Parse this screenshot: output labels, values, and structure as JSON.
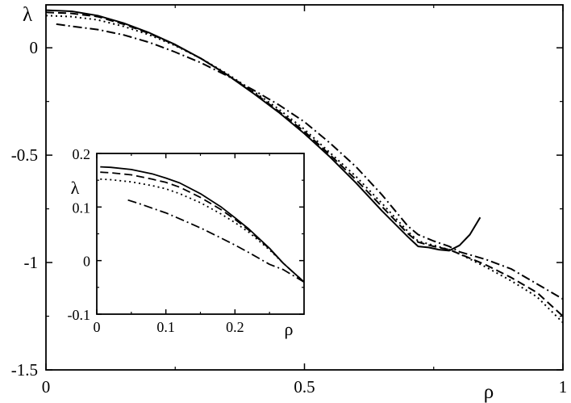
{
  "chart_data": [
    {
      "type": "line",
      "title": "",
      "xlabel": "ρ",
      "ylabel": "λ",
      "xlim": [
        0,
        1
      ],
      "ylim": [
        -1.5,
        0.2
      ],
      "xticks": [
        0,
        0.5,
        1
      ],
      "xtick_labels": [
        "0",
        "0.5",
        "1"
      ],
      "yticks": [
        0,
        -0.5,
        -1,
        -1.5
      ],
      "ytick_labels": [
        "0",
        "-0.5",
        "-1",
        "-1.5"
      ],
      "grid": false,
      "legend": "none",
      "series": [
        {
          "style": "solid",
          "x": [
            0,
            0.05,
            0.1,
            0.15,
            0.2,
            0.25,
            0.3,
            0.35,
            0.4,
            0.45,
            0.5,
            0.55,
            0.6,
            0.65,
            0.7,
            0.72,
            0.74,
            0.76,
            0.78,
            0.8,
            0.82,
            0.84
          ],
          "y": [
            0.175,
            0.17,
            0.15,
            0.115,
            0.07,
            0.015,
            -0.05,
            -0.125,
            -0.21,
            -0.3,
            -0.4,
            -0.51,
            -0.63,
            -0.76,
            -0.88,
            -0.925,
            -0.93,
            -0.94,
            -0.945,
            -0.92,
            -0.87,
            -0.79
          ]
        },
        {
          "style": "dashed",
          "x": [
            0,
            0.05,
            0.1,
            0.15,
            0.2,
            0.25,
            0.3,
            0.35,
            0.4,
            0.45,
            0.5,
            0.55,
            0.6,
            0.65,
            0.7,
            0.72,
            0.75,
            0.78,
            0.8,
            0.85,
            0.9,
            0.95,
            1
          ],
          "y": [
            0.165,
            0.16,
            0.145,
            0.11,
            0.067,
            0.013,
            -0.05,
            -0.125,
            -0.205,
            -0.295,
            -0.39,
            -0.5,
            -0.615,
            -0.74,
            -0.865,
            -0.905,
            -0.925,
            -0.94,
            -0.96,
            -1.01,
            -1.07,
            -1.14,
            -1.25
          ]
        },
        {
          "style": "dotted",
          "x": [
            0,
            0.05,
            0.1,
            0.15,
            0.2,
            0.25,
            0.3,
            0.35,
            0.4,
            0.45,
            0.5,
            0.55,
            0.6,
            0.65,
            0.7,
            0.72,
            0.75,
            0.78,
            0.8,
            0.85,
            0.9,
            0.95,
            1
          ],
          "y": [
            0.15,
            0.145,
            0.13,
            0.1,
            0.06,
            0.01,
            -0.05,
            -0.12,
            -0.2,
            -0.285,
            -0.38,
            -0.49,
            -0.6,
            -0.725,
            -0.855,
            -0.9,
            -0.92,
            -0.94,
            -0.96,
            -1.02,
            -1.085,
            -1.16,
            -1.28
          ]
        },
        {
          "style": "dash-dot",
          "x": [
            0.02,
            0.05,
            0.1,
            0.15,
            0.2,
            0.25,
            0.3,
            0.35,
            0.4,
            0.45,
            0.5,
            0.55,
            0.6,
            0.65,
            0.7,
            0.72,
            0.75,
            0.78,
            0.8,
            0.85,
            0.9,
            0.95,
            1
          ],
          "y": [
            0.11,
            0.1,
            0.085,
            0.06,
            0.025,
            -0.02,
            -0.07,
            -0.13,
            -0.195,
            -0.265,
            -0.345,
            -0.445,
            -0.555,
            -0.685,
            -0.83,
            -0.87,
            -0.9,
            -0.925,
            -0.95,
            -0.985,
            -1.03,
            -1.1,
            -1.17
          ]
        }
      ]
    },
    {
      "type": "line",
      "title": "",
      "xlabel": "ρ",
      "ylabel": "λ",
      "xlim": [
        0,
        0.3
      ],
      "ylim": [
        -0.1,
        0.2
      ],
      "xticks": [
        0,
        0.1,
        0.2
      ],
      "xtick_labels": [
        "0",
        "0.1",
        "0.2"
      ],
      "yticks": [
        0.2,
        0.1,
        0,
        -0.1
      ],
      "ytick_labels": [
        "0.2",
        "0.1",
        "0",
        "-0.1"
      ],
      "grid": false,
      "legend": "none",
      "series": [
        {
          "style": "solid",
          "x": [
            0.005,
            0.02,
            0.05,
            0.08,
            0.1,
            0.12,
            0.15,
            0.18,
            0.2,
            0.22,
            0.25,
            0.27,
            0.3
          ],
          "y": [
            0.175,
            0.174,
            0.17,
            0.162,
            0.154,
            0.145,
            0.125,
            0.1,
            0.08,
            0.059,
            0.023,
            -0.005,
            -0.04
          ]
        },
        {
          "style": "dashed",
          "x": [
            0.005,
            0.02,
            0.05,
            0.08,
            0.1,
            0.12,
            0.15,
            0.18,
            0.2,
            0.22,
            0.25,
            0.27,
            0.3
          ],
          "y": [
            0.165,
            0.164,
            0.16,
            0.152,
            0.146,
            0.137,
            0.118,
            0.095,
            0.077,
            0.057,
            0.022,
            -0.005,
            -0.04
          ]
        },
        {
          "style": "dotted",
          "x": [
            0.005,
            0.02,
            0.05,
            0.08,
            0.1,
            0.12,
            0.15,
            0.18,
            0.2,
            0.22,
            0.25,
            0.27,
            0.3
          ],
          "y": [
            0.152,
            0.151,
            0.147,
            0.14,
            0.134,
            0.125,
            0.108,
            0.087,
            0.071,
            0.053,
            0.02,
            -0.005,
            -0.04
          ]
        },
        {
          "style": "dash-dot",
          "x": [
            0.045,
            0.06,
            0.08,
            0.1,
            0.12,
            0.15,
            0.18,
            0.2,
            0.22,
            0.25,
            0.27,
            0.3
          ],
          "y": [
            0.113,
            0.107,
            0.098,
            0.089,
            0.078,
            0.061,
            0.042,
            0.029,
            0.015,
            -0.007,
            -0.017,
            -0.04
          ]
        }
      ]
    }
  ]
}
